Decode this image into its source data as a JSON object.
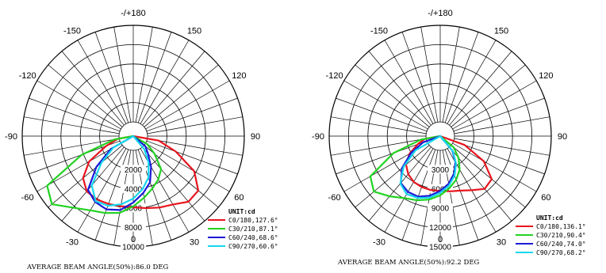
{
  "chart_data": [
    {
      "type": "polar",
      "angle_ticks": [
        "-/+180",
        "-150",
        "150",
        "-120",
        "120",
        "-90",
        "90",
        "-60",
        "60",
        "-30",
        "30",
        "0"
      ],
      "radial_ticks": [
        "2000",
        "4000",
        "6000",
        "8000",
        "10000"
      ],
      "radial_max": 10000,
      "unit_label": "UNIT:cd",
      "footer": "AVERAGE BEAM ANGLE(50%):86.0 DEG",
      "series": [
        {
          "name": "C0/180,127.6°",
          "color": "#e8141e",
          "angles": [
            -80,
            -70,
            -60,
            -50,
            -40,
            -30,
            -20,
            -10,
            0,
            10,
            20,
            30,
            40,
            50,
            60,
            70,
            80
          ],
          "values": [
            150,
            1500,
            3800,
            5300,
            6000,
            6100,
            6000,
            5900,
            5900,
            6100,
            6400,
            6700,
            7400,
            7300,
            5800,
            3200,
            1200
          ]
        },
        {
          "name": "C30/210,87.1°",
          "color": "#22d222",
          "angles": [
            -80,
            -70,
            -60,
            -50,
            -40,
            -30,
            -20,
            -10,
            0,
            10,
            20,
            30,
            40,
            50,
            60
          ],
          "values": [
            500,
            4200,
            8800,
            9500,
            8200,
            7400,
            7000,
            6600,
            5800,
            5000,
            4300,
            3700,
            3000,
            1400,
            200
          ]
        },
        {
          "name": "C60/240,68.6°",
          "color": "#1a1ad6",
          "angles": [
            -60,
            -50,
            -40,
            -30,
            -20,
            -10,
            0,
            10,
            20,
            30,
            40,
            50
          ],
          "values": [
            1200,
            3500,
            5800,
            6400,
            6600,
            6300,
            5400,
            4500,
            3600,
            2200,
            900,
            150
          ]
        },
        {
          "name": "C90/270,60.6°",
          "color": "#16d6ee",
          "angles": [
            -60,
            -50,
            -40,
            -30,
            -20,
            -10,
            0,
            10,
            20,
            30,
            40
          ],
          "values": [
            900,
            2800,
            5200,
            6300,
            6200,
            5700,
            5000,
            4100,
            3100,
            1700,
            300
          ]
        }
      ]
    },
    {
      "type": "polar",
      "angle_ticks": [
        "-/+180",
        "-150",
        "150",
        "-120",
        "120",
        "-90",
        "90",
        "-60",
        "60",
        "-30",
        "30",
        "0"
      ],
      "radial_ticks": [
        "3000",
        "6000",
        "9000",
        "12000",
        "15000"
      ],
      "radial_max": 15000,
      "unit_label": "UNIT:cd",
      "footer": "AVERAGE BEAM ANGLE(50%):92.2 DEG",
      "series": [
        {
          "name": "C0/180,136.1°",
          "color": "#e8141e",
          "angles": [
            -80,
            -70,
            -60,
            -50,
            -40,
            -30,
            -20,
            -10,
            0,
            10,
            20,
            30,
            40,
            50,
            60,
            70
          ],
          "values": [
            200,
            1500,
            3300,
            4700,
            5500,
            6000,
            6200,
            6300,
            6300,
            6500,
            6800,
            7500,
            8500,
            8200,
            5600,
            1800
          ]
        },
        {
          "name": "C30/210,90.4°",
          "color": "#22d222",
          "angles": [
            -80,
            -70,
            -60,
            -50,
            -40,
            -30,
            -20,
            -10,
            0,
            10,
            20,
            30,
            40,
            50
          ],
          "values": [
            800,
            5500,
            10300,
            11200,
            10000,
            8900,
            8400,
            7800,
            7000,
            6000,
            5000,
            3800,
            2200,
            500
          ]
        },
        {
          "name": "C60/240,74.0°",
          "color": "#1a1ad6",
          "angles": [
            -70,
            -60,
            -50,
            -40,
            -30,
            -20,
            -10,
            0,
            10,
            20,
            30,
            40
          ],
          "values": [
            600,
            3000,
            5500,
            7300,
            7800,
            7800,
            7200,
            6300,
            5300,
            4000,
            2500,
            700
          ]
        },
        {
          "name": "C90/270,68.2°",
          "color": "#16d6ee",
          "angles": [
            -60,
            -50,
            -40,
            -30,
            -20,
            -10,
            0,
            10,
            20,
            30,
            40
          ],
          "values": [
            2200,
            5200,
            7400,
            8200,
            8000,
            7500,
            6600,
            5600,
            4300,
            2700,
            800
          ]
        }
      ]
    }
  ]
}
